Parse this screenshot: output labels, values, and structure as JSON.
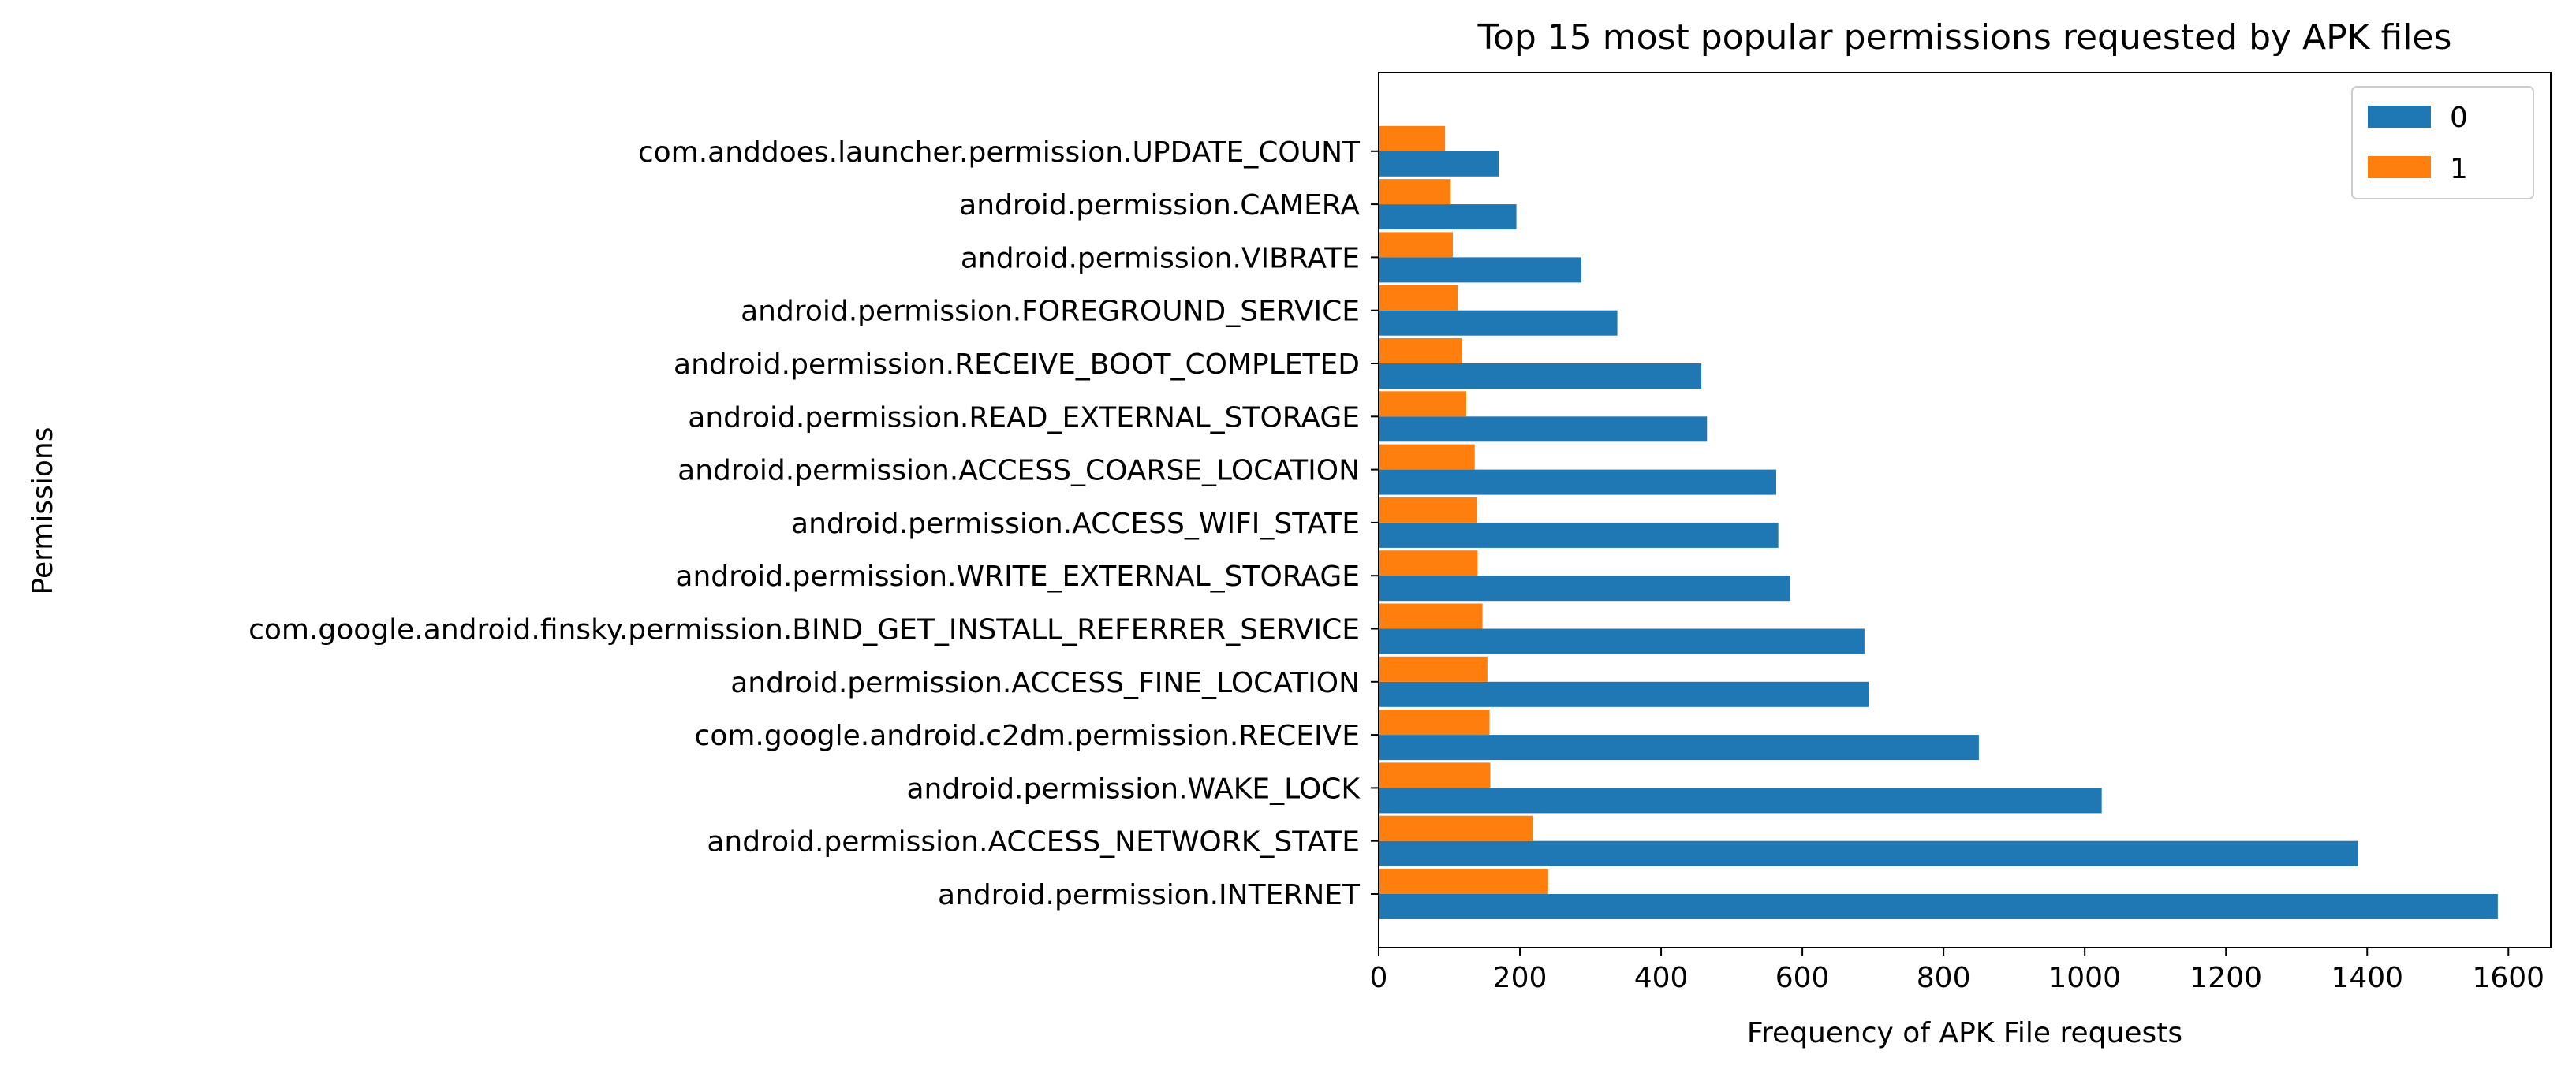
{
  "chart_data": {
    "type": "bar",
    "orientation": "horizontal",
    "title": "Top 15 most popular permissions requested by APK files",
    "xlabel": "Frequency of APK File requests",
    "ylabel": "Permissions",
    "xlim": [
      0,
      1660
    ],
    "xticks": [
      "0",
      "200",
      "400",
      "600",
      "800",
      "1000",
      "1200",
      "1400",
      "1600"
    ],
    "grid": false,
    "legend_position": "top-right",
    "categories": [
      "android.permission.INTERNET",
      "android.permission.ACCESS_NETWORK_STATE",
      "android.permission.WAKE_LOCK",
      "com.google.android.c2dm.permission.RECEIVE",
      "android.permission.ACCESS_FINE_LOCATION",
      "com.google.android.finsky.permission.BIND_GET_INSTALL_REFERRER_SERVICE",
      "android.permission.WRITE_EXTERNAL_STORAGE",
      "android.permission.ACCESS_WIFI_STATE",
      "android.permission.ACCESS_COARSE_LOCATION",
      "android.permission.READ_EXTERNAL_STORAGE",
      "android.permission.RECEIVE_BOOT_COMPLETED",
      "android.permission.FOREGROUND_SERVICE",
      "android.permission.VIBRATE",
      "android.permission.CAMERA",
      "com.anddoes.launcher.permission.UPDATE_COUNT"
    ],
    "series": [
      {
        "name": "0",
        "color": "#1f77b4",
        "values": [
          1585,
          1387,
          1024,
          850,
          694,
          688,
          583,
          566,
          563,
          465,
          457,
          338,
          287,
          195,
          170
        ]
      },
      {
        "name": "1",
        "color": "#ff7f0e",
        "values": [
          240,
          218,
          158,
          157,
          154,
          147,
          140,
          139,
          136,
          124,
          118,
          112,
          105,
          102,
          94
        ]
      }
    ]
  }
}
